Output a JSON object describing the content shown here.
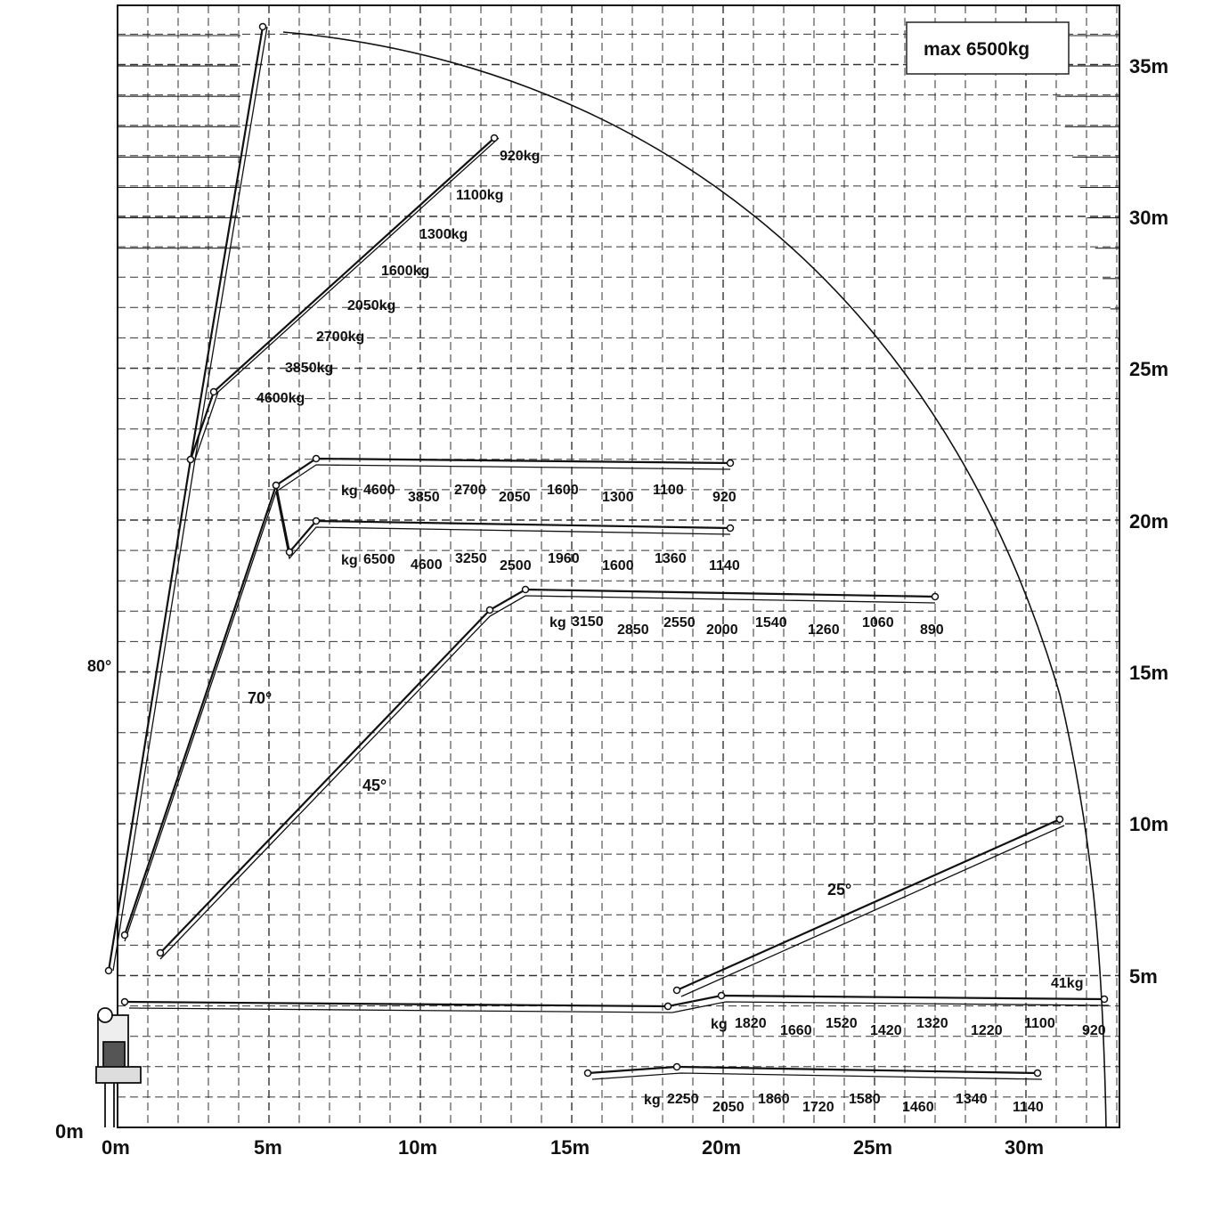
{
  "max_label": "max 6500kg",
  "x_axis": {
    "unit": "m",
    "ticks": [
      {
        "value": 0,
        "label": "0m"
      },
      {
        "value": 5,
        "label": "5m"
      },
      {
        "value": 10,
        "label": "10m"
      },
      {
        "value": 15,
        "label": "15m"
      },
      {
        "value": 20,
        "label": "20m"
      },
      {
        "value": 25,
        "label": "25m"
      },
      {
        "value": 30,
        "label": "30m"
      }
    ]
  },
  "y_axis": {
    "unit": "m",
    "ticks": [
      {
        "value": 0,
        "label": "0m"
      },
      {
        "value": 5,
        "label": "5m"
      },
      {
        "value": 10,
        "label": "10m"
      },
      {
        "value": 15,
        "label": "15m"
      },
      {
        "value": 20,
        "label": "20m"
      },
      {
        "value": 25,
        "label": "25m"
      },
      {
        "value": 30,
        "label": "30m"
      },
      {
        "value": 35,
        "label": "35m"
      }
    ]
  },
  "angle_labels": [
    "80°",
    "70°",
    "45°",
    "25°"
  ],
  "configurations": [
    {
      "id": "boom-80-jib-raised",
      "loads": [
        "920kg",
        "1100kg",
        "1300kg",
        "1600kg",
        "2050kg",
        "2700kg",
        "3850kg",
        "4600kg"
      ]
    },
    {
      "id": "boom-70-upper",
      "prefix": "kg",
      "loads": [
        "4600",
        "3850",
        "2700",
        "2050",
        "1600",
        "1300",
        "1100",
        "920"
      ]
    },
    {
      "id": "boom-70-lower",
      "prefix": "kg",
      "loads": [
        "6500",
        "4600",
        "3250",
        "2500",
        "1960",
        "1600",
        "1360",
        "1140"
      ]
    },
    {
      "id": "boom-45",
      "prefix": "kg",
      "loads": [
        "3150",
        "2850",
        "2550",
        "2000",
        "1540",
        "1260",
        "1060",
        "890"
      ]
    },
    {
      "id": "boom-25-jib-raised",
      "loads": [
        "41kg"
      ]
    },
    {
      "id": "boom-0-horizontal",
      "prefix": "kg",
      "loads": [
        "1820",
        "1660",
        "1520",
        "1420",
        "1320",
        "1220",
        "1100",
        "920"
      ]
    },
    {
      "id": "boom-0-lower",
      "prefix": "kg",
      "loads": [
        "2250",
        "2050",
        "1860",
        "1720",
        "1580",
        "1460",
        "1340",
        "1140"
      ]
    }
  ]
}
